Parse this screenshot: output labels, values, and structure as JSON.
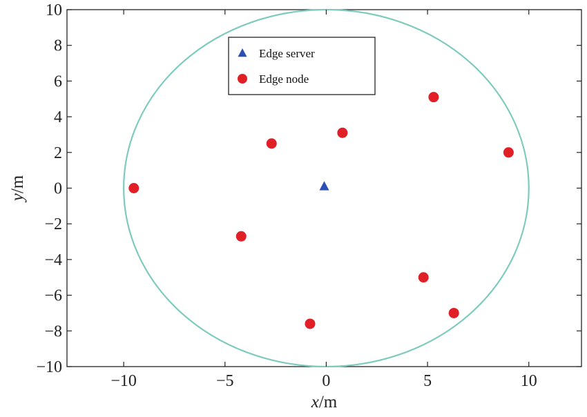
{
  "chart_data": {
    "type": "scatter",
    "xlabel_var": "x",
    "xlabel_unit": "/m",
    "ylabel_var": "y",
    "ylabel_unit": "/m",
    "xlim": [
      -12.8,
      12.6
    ],
    "ylim": [
      -10,
      10
    ],
    "xticks": [
      -10,
      -5,
      0,
      5,
      10
    ],
    "xtick_labels": [
      "−10",
      "−5",
      "0",
      "5",
      "10"
    ],
    "yticks": [
      -10,
      -8,
      -6,
      -4,
      -2,
      0,
      2,
      4,
      6,
      8,
      10
    ],
    "ytick_labels": [
      "−10",
      "−8",
      "−6",
      "−4",
      "−2",
      "0",
      "2",
      "4",
      "6",
      "8",
      "10"
    ],
    "grid": false,
    "legend_position": "top-center",
    "circle": {
      "center": [
        0,
        0
      ],
      "radius": 10,
      "color": "#7ecbbd"
    },
    "series": [
      {
        "name": "Edge server",
        "marker": "triangle",
        "color": "#2b4fb5",
        "points": [
          [
            -0.1,
            0.1
          ]
        ]
      },
      {
        "name": "Edge node",
        "marker": "circle",
        "color": "#e01f26",
        "points": [
          [
            -9.5,
            0.0
          ],
          [
            -2.7,
            2.5
          ],
          [
            0.8,
            3.1
          ],
          [
            5.3,
            5.1
          ],
          [
            9.0,
            2.0
          ],
          [
            -4.2,
            -2.7
          ],
          [
            4.8,
            -5.0
          ],
          [
            6.3,
            -7.0
          ],
          [
            -0.8,
            -7.6
          ]
        ]
      }
    ]
  }
}
